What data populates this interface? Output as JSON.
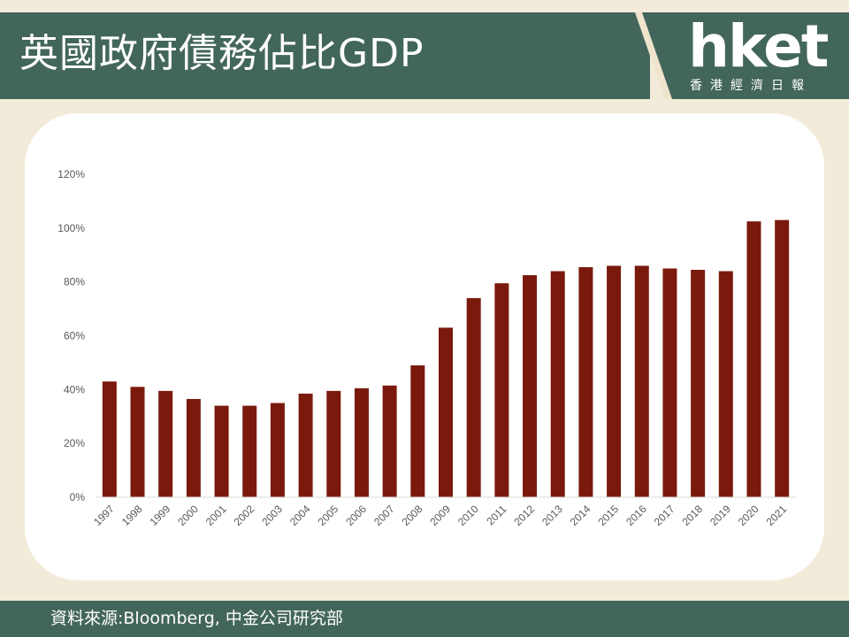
{
  "header": {
    "title": "英國政府債務佔比GDP"
  },
  "logo": {
    "text": "hket",
    "subtitle": "香港經濟日報"
  },
  "footer": {
    "source": "資料來源:Bloomberg, 中金公司研究部"
  },
  "colors": {
    "bar": "#7a1a0c",
    "header": "#43665c",
    "background": "#f3ebd9",
    "card": "#ffffff"
  },
  "chart_data": {
    "type": "bar",
    "categories": [
      "1997",
      "1998",
      "1999",
      "2000",
      "2001",
      "2002",
      "2003",
      "2004",
      "2005",
      "2006",
      "2007",
      "2008",
      "2009",
      "2010",
      "2011",
      "2012",
      "2013",
      "2014",
      "2015",
      "2016",
      "2017",
      "2018",
      "2019",
      "2020",
      "2021"
    ],
    "values": [
      43,
      41,
      39.5,
      36.5,
      34,
      34,
      35,
      38.5,
      39.5,
      40.5,
      41.5,
      49,
      63,
      74,
      79.5,
      82.5,
      84,
      85.5,
      86,
      86,
      85,
      84.5,
      84,
      102.5,
      103
    ],
    "yticks": [
      "0%",
      "20%",
      "40%",
      "60%",
      "80%",
      "100%",
      "120%"
    ],
    "ylim": [
      0,
      120
    ],
    "grid": false,
    "legend": "none"
  }
}
